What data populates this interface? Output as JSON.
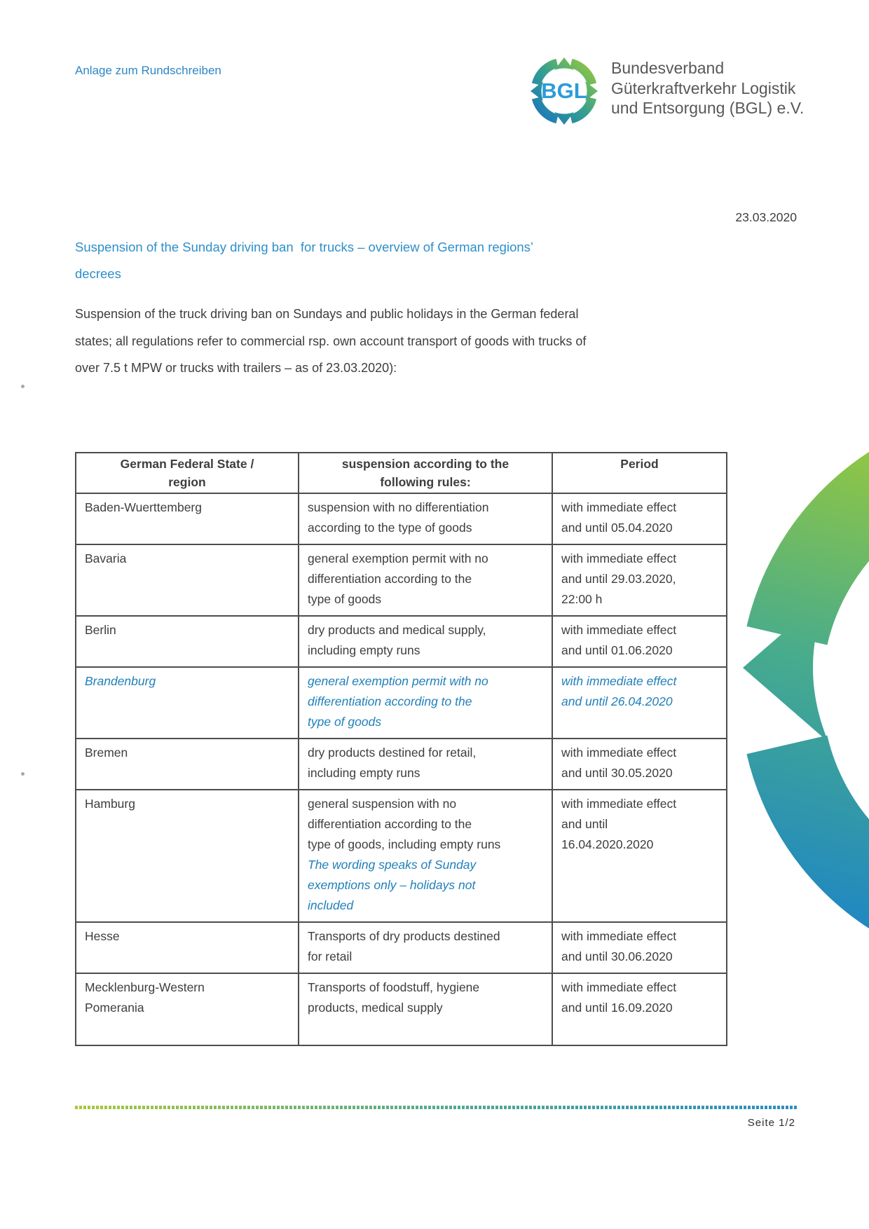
{
  "page": {
    "annotation": "Anlage zum Rundschreiben",
    "date": "23.03.2020",
    "title": "Suspension of the Sunday driving ban  for trucks – overview of German regions’\ndecrees",
    "intro": "Suspension of the truck driving ban on Sundays and public holidays in the German federal\nstates; all regulations refer to commercial rsp. own account transport of goods with trucks of\nover 7.5 t MPW or trucks with trailers – as of 23.03.2020):",
    "footer_page": "Seite 1/2"
  },
  "logo": {
    "acronym": "BGL",
    "org_name": "Bundesverband\nGüterkraftverkehr Logistik\nund Entsorgung (BGL) e.V."
  },
  "table": {
    "headers": [
      "German Federal State /\nregion",
      "suspension according to the\nfollowing rules:",
      "Period"
    ],
    "rows": [
      {
        "state": "Baden-Wuerttemberg",
        "rule": "suspension with no differentiation\naccording to the type of goods",
        "note": "",
        "period": "with immediate effect\nand until 05.04.2020",
        "highlighted": false
      },
      {
        "state": "Bavaria",
        "rule": "general exemption permit with no\ndifferentiation according to the\ntype of goods",
        "note": "",
        "period": "with immediate effect\nand until 29.03.2020,\n22:00 h",
        "highlighted": false
      },
      {
        "state": "Berlin",
        "rule": "dry products and medical supply,\nincluding empty runs",
        "note": "",
        "period": "with immediate effect\nand until 01.06.2020",
        "highlighted": false
      },
      {
        "state": "Brandenburg",
        "rule": "general exemption permit with no\ndifferentiation according to the\ntype of goods",
        "note": "",
        "period": "with immediate effect\nand until 26.04.2020",
        "highlighted": true
      },
      {
        "state": "Bremen",
        "rule": "dry products destined for retail,\nincluding empty runs",
        "note": "",
        "period": "with immediate effect\nand until 30.05.2020",
        "highlighted": false
      },
      {
        "state": "Hamburg",
        "rule": "general suspension with no\ndifferentiation according to the\ntype of goods, including empty runs",
        "note": "The wording speaks of Sunday\nexemptions only – holidays not\nincluded",
        "period": "with immediate effect\nand until\n16.04.2020.2020",
        "highlighted": false
      },
      {
        "state": "Hesse",
        "rule": "Transports of dry products destined\nfor retail",
        "note": "",
        "period": "with immediate effect\nand until 30.06.2020",
        "highlighted": false
      },
      {
        "state": "Mecklenburg-Western\nPomerania",
        "rule": "Transports of foodstuff, hygiene\nproducts, medical supply",
        "note": "",
        "period": "with immediate effect\nand until 16.09.2020",
        "highlighted": false
      }
    ]
  },
  "colors": {
    "accent_blue": "#2e8fc9",
    "table_highlight_blue": "#2080ba",
    "body_text": "#3d3e40",
    "logo_green": "#95c93d",
    "logo_blue": "#1b75bc",
    "border": "#4d4d4d"
  }
}
